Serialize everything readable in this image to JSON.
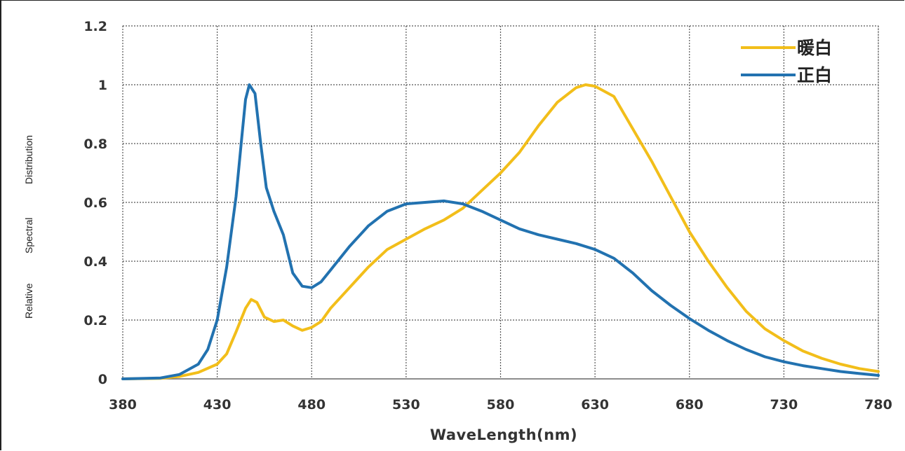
{
  "chart_data": {
    "type": "line",
    "title": "",
    "xlabel": "WaveLength(nm)",
    "ylabel_words": [
      "Relative",
      "Spectral",
      "Distribution"
    ],
    "xlim": [
      380,
      780
    ],
    "ylim": [
      0,
      1.2
    ],
    "x_ticks": [
      380,
      430,
      480,
      530,
      580,
      630,
      680,
      730,
      780
    ],
    "y_ticks": [
      0,
      0.2,
      0.4,
      0.6,
      0.8,
      1,
      1.2
    ],
    "y_tick_labels": [
      "0",
      "0.2",
      "0.4",
      "0.6",
      "0.8",
      "1",
      "1.2"
    ],
    "grid": true,
    "legend_position": "top-right",
    "series": [
      {
        "name": "暖白",
        "color": "#F2BE1A",
        "points": [
          [
            380,
            0
          ],
          [
            400,
            0.002
          ],
          [
            410,
            0.008
          ],
          [
            420,
            0.022
          ],
          [
            430,
            0.05
          ],
          [
            435,
            0.085
          ],
          [
            440,
            0.16
          ],
          [
            445,
            0.24
          ],
          [
            448,
            0.27
          ],
          [
            451,
            0.26
          ],
          [
            455,
            0.21
          ],
          [
            460,
            0.195
          ],
          [
            465,
            0.2
          ],
          [
            470,
            0.18
          ],
          [
            475,
            0.165
          ],
          [
            480,
            0.175
          ],
          [
            485,
            0.195
          ],
          [
            490,
            0.24
          ],
          [
            500,
            0.31
          ],
          [
            510,
            0.38
          ],
          [
            520,
            0.44
          ],
          [
            530,
            0.475
          ],
          [
            540,
            0.51
          ],
          [
            550,
            0.54
          ],
          [
            560,
            0.58
          ],
          [
            570,
            0.64
          ],
          [
            580,
            0.7
          ],
          [
            590,
            0.77
          ],
          [
            600,
            0.86
          ],
          [
            610,
            0.94
          ],
          [
            620,
            0.99
          ],
          [
            625,
            1.0
          ],
          [
            630,
            0.995
          ],
          [
            640,
            0.96
          ],
          [
            650,
            0.85
          ],
          [
            660,
            0.74
          ],
          [
            670,
            0.62
          ],
          [
            680,
            0.5
          ],
          [
            690,
            0.4
          ],
          [
            700,
            0.31
          ],
          [
            710,
            0.23
          ],
          [
            720,
            0.17
          ],
          [
            730,
            0.13
          ],
          [
            740,
            0.095
          ],
          [
            750,
            0.07
          ],
          [
            760,
            0.05
          ],
          [
            770,
            0.035
          ],
          [
            780,
            0.025
          ]
        ]
      },
      {
        "name": "正白",
        "color": "#2272B0",
        "points": [
          [
            380,
            0
          ],
          [
            400,
            0.003
          ],
          [
            410,
            0.015
          ],
          [
            420,
            0.05
          ],
          [
            425,
            0.1
          ],
          [
            430,
            0.2
          ],
          [
            435,
            0.38
          ],
          [
            440,
            0.62
          ],
          [
            443,
            0.82
          ],
          [
            445,
            0.95
          ],
          [
            447,
            1.0
          ],
          [
            450,
            0.97
          ],
          [
            453,
            0.8
          ],
          [
            456,
            0.65
          ],
          [
            460,
            0.57
          ],
          [
            465,
            0.49
          ],
          [
            470,
            0.36
          ],
          [
            475,
            0.315
          ],
          [
            480,
            0.31
          ],
          [
            485,
            0.33
          ],
          [
            490,
            0.37
          ],
          [
            500,
            0.45
          ],
          [
            510,
            0.52
          ],
          [
            520,
            0.57
          ],
          [
            530,
            0.595
          ],
          [
            540,
            0.6
          ],
          [
            550,
            0.605
          ],
          [
            560,
            0.595
          ],
          [
            570,
            0.57
          ],
          [
            580,
            0.54
          ],
          [
            590,
            0.51
          ],
          [
            600,
            0.49
          ],
          [
            610,
            0.475
          ],
          [
            620,
            0.46
          ],
          [
            630,
            0.44
          ],
          [
            640,
            0.41
          ],
          [
            650,
            0.36
          ],
          [
            660,
            0.3
          ],
          [
            670,
            0.25
          ],
          [
            680,
            0.205
          ],
          [
            690,
            0.165
          ],
          [
            700,
            0.13
          ],
          [
            710,
            0.1
          ],
          [
            720,
            0.075
          ],
          [
            730,
            0.058
          ],
          [
            740,
            0.045
          ],
          [
            750,
            0.035
          ],
          [
            760,
            0.025
          ],
          [
            770,
            0.018
          ],
          [
            780,
            0.012
          ]
        ]
      }
    ]
  }
}
